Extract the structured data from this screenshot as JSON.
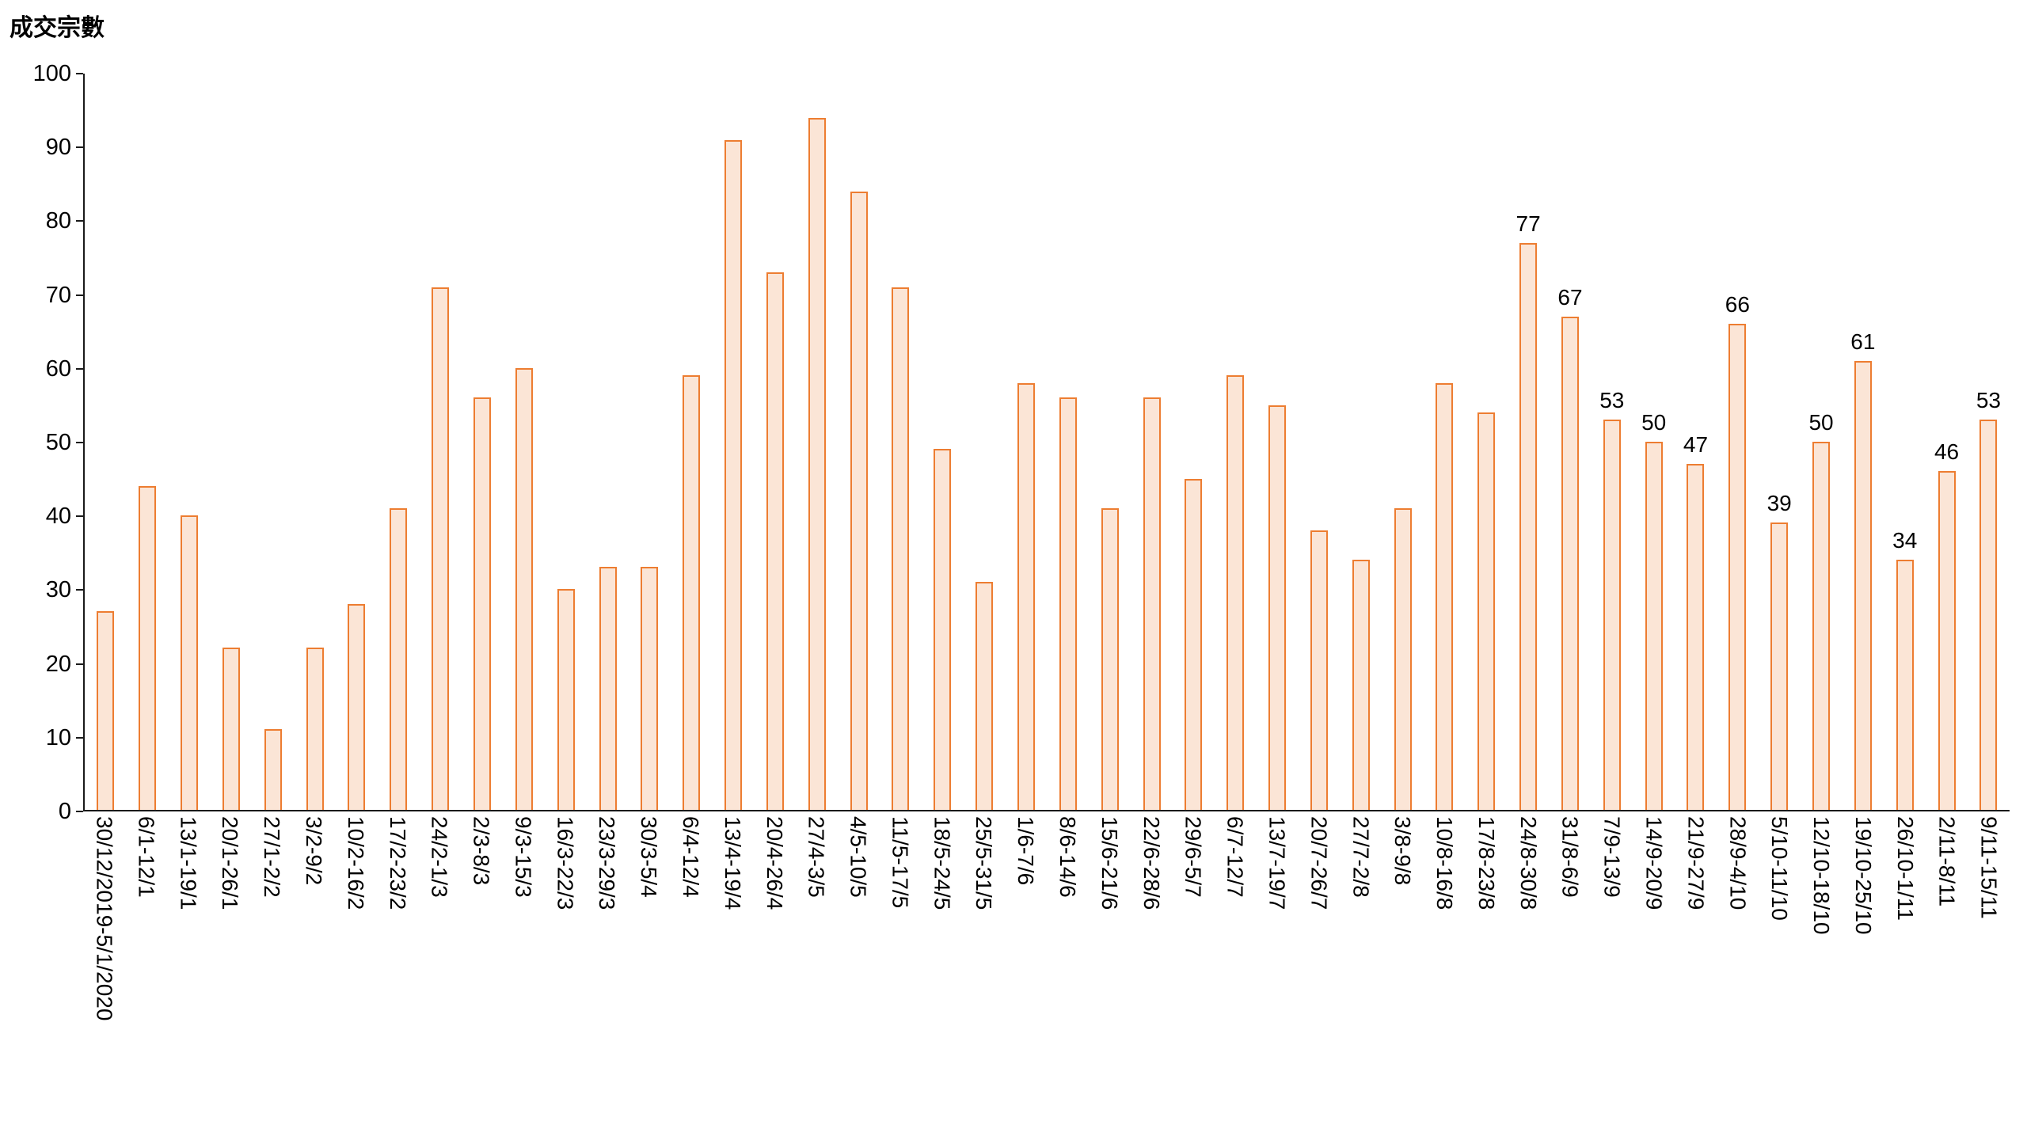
{
  "chart_data": {
    "type": "bar",
    "title": "成交宗數",
    "ylabel": "成交宗數",
    "xlabel": "",
    "ylim": [
      0,
      100
    ],
    "yticks": [
      0,
      10,
      20,
      30,
      40,
      50,
      60,
      70,
      80,
      90,
      100
    ],
    "grid": false,
    "legend": "none",
    "bar_border_color": "#ED7D31",
    "bar_fill_color": "#FBE5D6",
    "axis_color": "#1a1a1a",
    "x_label_rotation": "vertical",
    "categories": [
      "30/12/2019-5/1/2020",
      "6/1-12/1",
      "13/1-19/1",
      "20/1-26/1",
      "27/1-2/2",
      "3/2-9/2",
      "10/2-16/2",
      "17/2-23/2",
      "24/2-1/3",
      "2/3-8/3",
      "9/3-15/3",
      "16/3-22/3",
      "23/3-29/3",
      "30/3-5/4",
      "6/4-12/4",
      "13/4-19/4",
      "20/4-26/4",
      "27/4-3/5",
      "4/5-10/5",
      "11/5-17/5",
      "18/5-24/5",
      "25/5-31/5",
      "1/6-7/6",
      "8/6-14/6",
      "15/6-21/6",
      "22/6-28/6",
      "29/6-5/7",
      "6/7-12/7",
      "13/7-19/7",
      "20/7-26/7",
      "27/7-2/8",
      "3/8-9/8",
      "10/8-16/8",
      "17/8-23/8",
      "24/8-30/8",
      "31/8-6/9",
      "7/9-13/9",
      "14/9-20/9",
      "21/9-27/9",
      "28/9-4/10",
      "5/10-11/10",
      "12/10-18/10",
      "19/10-25/10",
      "26/10-1/11",
      "2/11-8/11",
      "9/11-15/11"
    ],
    "values": [
      27,
      44,
      40,
      22,
      11,
      22,
      28,
      41,
      71,
      56,
      60,
      30,
      33,
      33,
      59,
      91,
      73,
      94,
      84,
      71,
      49,
      31,
      58,
      56,
      41,
      56,
      45,
      59,
      55,
      38,
      34,
      41,
      58,
      54,
      77,
      67,
      53,
      50,
      47,
      66,
      39,
      50,
      61,
      34,
      46,
      53
    ],
    "data_label_start_index": 34,
    "visible_data_labels": [
      77,
      67,
      53,
      50,
      47,
      66,
      39,
      50,
      61,
      34,
      46,
      53
    ]
  }
}
